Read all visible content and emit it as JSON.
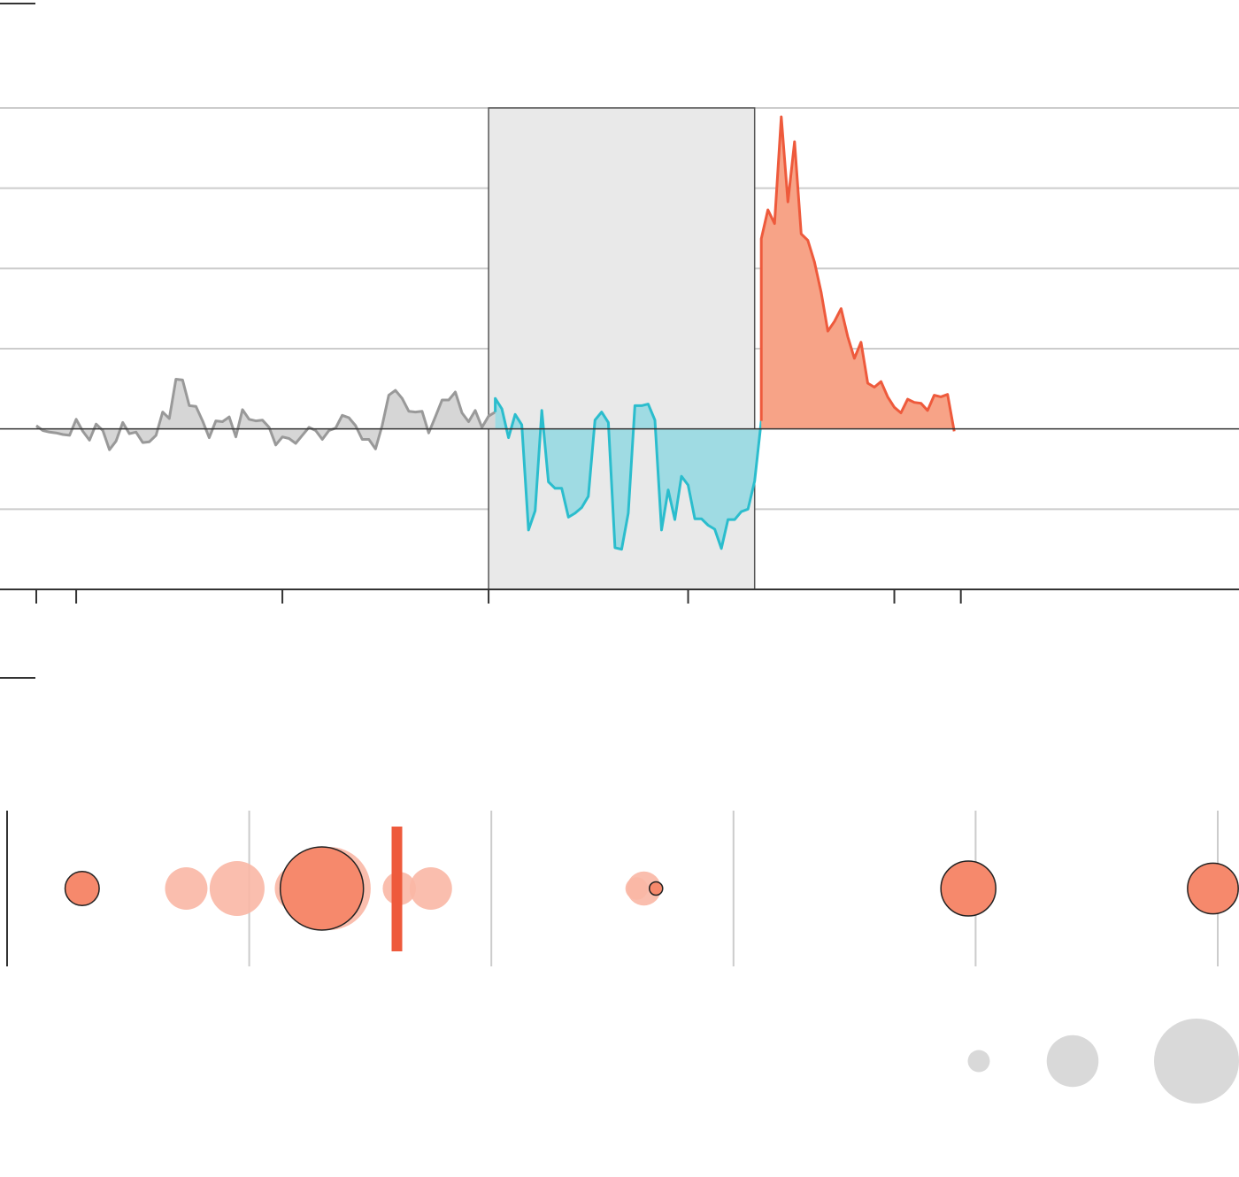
{
  "colors": {
    "background": "#ffffff",
    "gridline": "#cccccc",
    "axis": "#333333",
    "normal_line": "#999999",
    "normal_fill": "#d6d6d6",
    "below_line": "#2bbdcd",
    "below_fill": "#9fdbe3",
    "above_line": "#ee5a3c",
    "above_fill": "#f7a387",
    "shaded_period": "#e9e9e9",
    "shaded_border": "#555555",
    "dot_main": "#f6896c",
    "dot_faded": "#f9b7a5",
    "marker": "#ee5a3c",
    "legend_dot": "#d9d9d9"
  },
  "chart_data": [
    {
      "type": "area",
      "title": "",
      "xlabel": "",
      "ylabel": "",
      "x_range": [
        0,
        159
      ],
      "ylim": [
        -2,
        4
      ],
      "gridlines": [
        -1,
        1,
        2,
        3,
        4
      ],
      "baseline": 0,
      "x_ticks": [
        0,
        6,
        37,
        68,
        98,
        129,
        139
      ],
      "x_tick_labels": [],
      "shaded_period": [
        68,
        108
      ],
      "segments": [
        {
          "style": "normal",
          "x_start": 0,
          "values": [
            0.04,
            -0.02,
            -0.04,
            -0.05,
            -0.07,
            -0.08,
            0.12,
            -0.03,
            -0.14,
            0.06,
            -0.02,
            -0.26,
            -0.15,
            0.08,
            -0.06,
            -0.04,
            -0.17,
            -0.16,
            -0.08,
            0.21,
            0.13,
            0.62,
            0.61,
            0.29,
            0.28,
            0.1,
            -0.11,
            0.1,
            0.09,
            0.15,
            -0.1,
            0.24,
            0.12,
            0.1,
            0.11,
            0.02,
            -0.2,
            -0.1,
            -0.12,
            -0.18,
            -0.08,
            0.02,
            -0.02,
            -0.13,
            -0.02,
            0.01,
            0.17,
            0.14,
            0.04,
            -0.13,
            -0.13,
            -0.25,
            0.04,
            0.42,
            0.48,
            0.38,
            0.22,
            0.21,
            0.22,
            -0.05,
            0.15,
            0.36,
            0.36,
            0.46,
            0.2,
            0.09,
            0.23,
            0.02,
            0.16,
            0.21
          ]
        },
        {
          "style": "below",
          "x_start": 69,
          "values": [
            0.38,
            0.25,
            -0.11,
            0.18,
            0.05,
            -1.26,
            -1.02,
            0.23,
            -0.66,
            -0.74,
            -0.74,
            -1.1,
            -1.05,
            -0.98,
            -0.84,
            0.11,
            0.21,
            0.08,
            -1.48,
            -1.5,
            -1.05,
            0.29,
            0.29,
            0.31,
            0.11,
            -1.26,
            -0.76,
            -1.13,
            -0.59,
            -0.7,
            -1.12,
            -1.12,
            -1.2,
            -1.25,
            -1.49,
            -1.13,
            -1.13,
            -1.03,
            -1.0,
            -0.65,
            0.1
          ]
        },
        {
          "style": "above",
          "x_start": 109,
          "values": [
            2.37,
            2.73,
            2.56,
            3.89,
            2.83,
            3.58,
            2.43,
            2.35,
            2.08,
            1.7,
            1.22,
            1.34,
            1.5,
            1.15,
            0.88,
            1.08,
            0.57,
            0.52,
            0.59,
            0.4,
            0.27,
            0.2,
            0.37,
            0.33,
            0.32,
            0.23,
            0.42,
            0.4,
            0.43,
            -0.03
          ]
        }
      ]
    },
    {
      "type": "scatter",
      "title": "",
      "xlabel": "",
      "ylabel": "",
      "x_range": [
        0,
        5
      ],
      "x_gridlines": [
        0,
        1,
        2,
        3,
        4,
        5
      ],
      "x_tick_labels": [],
      "marker_line": {
        "x": 1.61
      },
      "points": [
        {
          "x": 0.31,
          "size": 0.41,
          "style": "highlight"
        },
        {
          "x": 0.74,
          "size": 0.51,
          "style": "faded"
        },
        {
          "x": 0.95,
          "size": 0.66,
          "style": "faded"
        },
        {
          "x": 1.2,
          "size": 0.55,
          "style": "faded"
        },
        {
          "x": 1.33,
          "size": 1.0,
          "style": "faded"
        },
        {
          "x": 1.3,
          "size": 1.0,
          "style": "highlight"
        },
        {
          "x": 1.62,
          "size": 0.4,
          "style": "faded"
        },
        {
          "x": 1.75,
          "size": 0.51,
          "style": "faded"
        },
        {
          "x": 2.63,
          "size": 0.41,
          "style": "faded"
        },
        {
          "x": 2.6,
          "size": 0.27,
          "style": "faded"
        },
        {
          "x": 2.68,
          "size": 0.16,
          "style": "highlight"
        },
        {
          "x": 3.97,
          "size": 0.66,
          "style": "highlight"
        },
        {
          "x": 4.98,
          "size": 0.61,
          "style": "highlight"
        }
      ],
      "size_legend": [
        0.26,
        0.61,
        1.0
      ],
      "size_legend_labels": []
    }
  ]
}
